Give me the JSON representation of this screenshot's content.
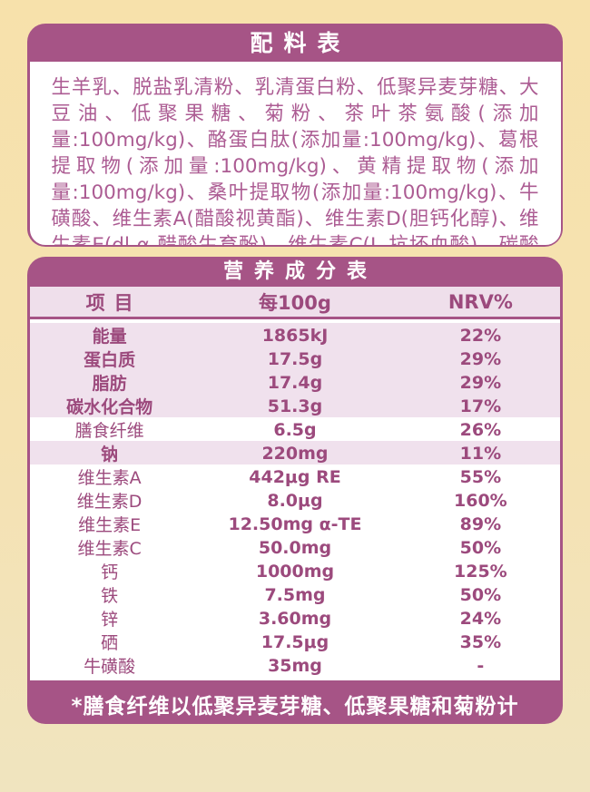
{
  "colors": {
    "accent": "#A65486",
    "row_highlight": "#F0E1ED",
    "table_text": "#9C4A7D",
    "ingredients_text": "#AC5C93",
    "background_top": "#F7E1AB",
    "background_bottom": "#F0E4BF"
  },
  "ingredients_card": {
    "title": "配料表",
    "text": "生羊乳、脱盐乳清粉、乳清蛋白粉、低聚异麦芽糖、大豆油、低聚果糖、菊粉、茶叶茶氨酸(添加量:100mg/kg)、酪蛋白肽(添加量:100mg/kg)、葛根提取物(添加量:100mg/kg)、黄精提取物(添加量:100mg/kg)、桑叶提取物(添加量:100mg/kg)、牛磺酸、维生素A(醋酸视黄酯)、维生素D(胆钙化醇)、维生素E(dl-α-醋酸生育酚)、维生素C(L-抗坏血酸)、碳酸钙、硫酸亚铁、硫酸锌、亚硒酸钠。"
  },
  "nutrition_card": {
    "title": "营养成分表",
    "columns": {
      "item": "项目",
      "per100g": "每100g",
      "nrv": "NRV%"
    },
    "rows": [
      {
        "label": "能量",
        "value": "1865kJ",
        "nrv": "22%",
        "highlight": true,
        "bold_label": true
      },
      {
        "label": "蛋白质",
        "value": "17.5g",
        "nrv": "29%",
        "highlight": true,
        "bold_label": true
      },
      {
        "label": "脂肪",
        "value": "17.4g",
        "nrv": "29%",
        "highlight": true,
        "bold_label": true
      },
      {
        "label": "碳水化合物",
        "value": "51.3g",
        "nrv": "17%",
        "highlight": true,
        "bold_label": true
      },
      {
        "label": "膳食纤维",
        "value": "6.5g",
        "nrv": "26%",
        "highlight": false,
        "bold_label": false
      },
      {
        "label": "钠",
        "value": "220mg",
        "nrv": "11%",
        "highlight": true,
        "bold_label": true
      },
      {
        "label": "维生素A",
        "value": "442μg RE",
        "nrv": "55%",
        "highlight": false,
        "bold_label": false
      },
      {
        "label": "维生素D",
        "value": "8.0μg",
        "nrv": "160%",
        "highlight": false,
        "bold_label": false
      },
      {
        "label": "维生素E",
        "value": "12.50mg α-TE",
        "nrv": "89%",
        "highlight": false,
        "bold_label": false
      },
      {
        "label": "维生素C",
        "value": "50.0mg",
        "nrv": "50%",
        "highlight": false,
        "bold_label": false
      },
      {
        "label": "钙",
        "value": "1000mg",
        "nrv": "125%",
        "highlight": false,
        "bold_label": false
      },
      {
        "label": "铁",
        "value": "7.5mg",
        "nrv": "50%",
        "highlight": false,
        "bold_label": false
      },
      {
        "label": "锌",
        "value": "3.60mg",
        "nrv": "24%",
        "highlight": false,
        "bold_label": false
      },
      {
        "label": "硒",
        "value": "17.5μg",
        "nrv": "35%",
        "highlight": false,
        "bold_label": false
      },
      {
        "label": "牛磺酸",
        "value": "35mg",
        "nrv": "-",
        "highlight": false,
        "bold_label": false
      }
    ],
    "footnote": "*膳食纤维以低聚异麦芽糖、低聚果糖和菊粉计"
  }
}
